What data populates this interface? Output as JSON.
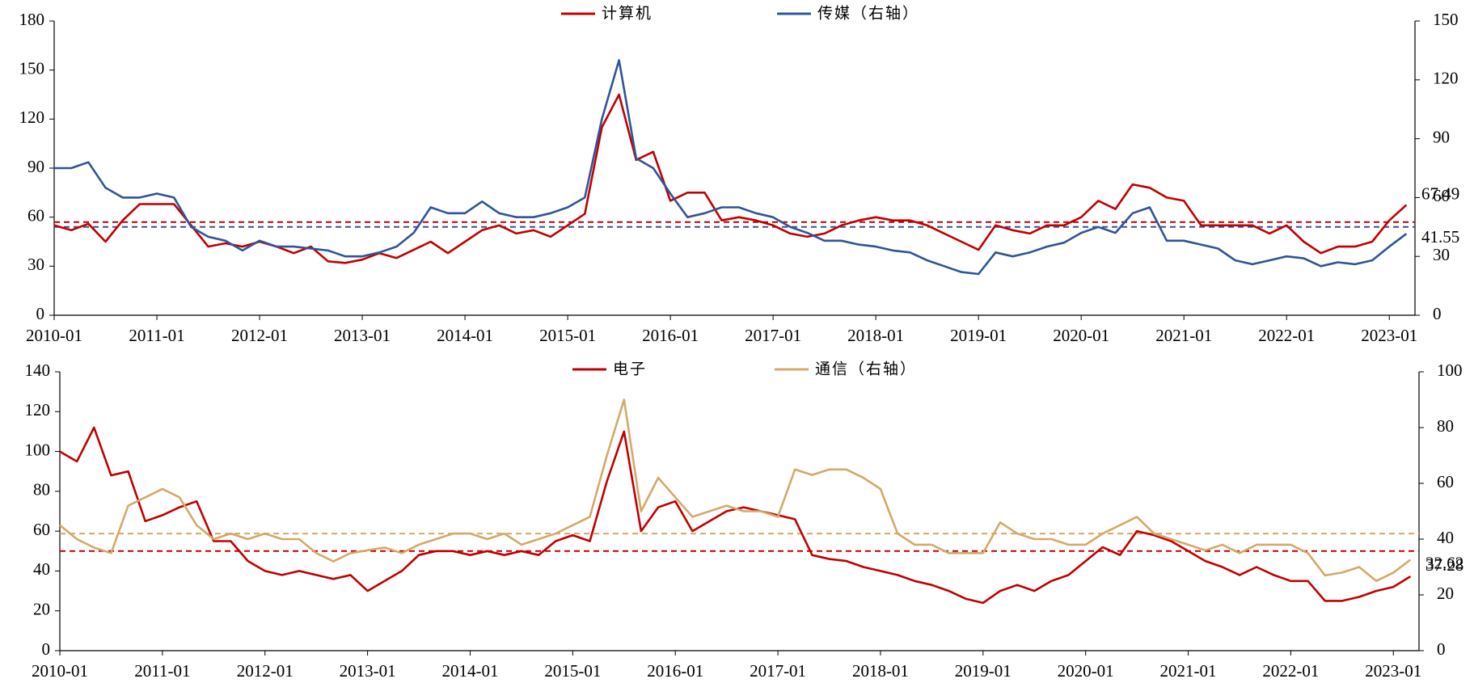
{
  "chart_data": [
    {
      "type": "line",
      "legend": "top",
      "x": [
        "2010-01",
        "2010-03",
        "2010-05",
        "2010-07",
        "2010-09",
        "2010-11",
        "2011-01",
        "2011-03",
        "2011-05",
        "2011-07",
        "2011-09",
        "2011-11",
        "2012-01",
        "2012-03",
        "2012-05",
        "2012-07",
        "2012-09",
        "2012-11",
        "2013-01",
        "2013-03",
        "2013-05",
        "2013-07",
        "2013-09",
        "2013-11",
        "2014-01",
        "2014-03",
        "2014-05",
        "2014-07",
        "2014-09",
        "2014-11",
        "2015-01",
        "2015-03",
        "2015-05",
        "2015-07",
        "2015-09",
        "2015-11",
        "2016-01",
        "2016-03",
        "2016-05",
        "2016-07",
        "2016-09",
        "2016-11",
        "2017-01",
        "2017-03",
        "2017-05",
        "2017-07",
        "2017-09",
        "2017-11",
        "2018-01",
        "2018-03",
        "2018-05",
        "2018-07",
        "2018-09",
        "2018-11",
        "2019-01",
        "2019-03",
        "2019-05",
        "2019-07",
        "2019-09",
        "2019-11",
        "2020-01",
        "2020-03",
        "2020-05",
        "2020-07",
        "2020-09",
        "2020-11",
        "2021-01",
        "2021-03",
        "2021-05",
        "2021-07",
        "2021-09",
        "2021-11",
        "2022-01",
        "2022-03",
        "2022-05",
        "2022-07",
        "2022-09",
        "2022-11",
        "2023-01",
        "2023-03"
      ],
      "xlim": [
        "2010-01",
        "2023-04"
      ],
      "xticks": [
        "2010-01",
        "2011-01",
        "2012-01",
        "2013-01",
        "2014-01",
        "2015-01",
        "2016-01",
        "2017-01",
        "2018-01",
        "2019-01",
        "2020-01",
        "2021-01",
        "2022-01",
        "2023-01"
      ],
      "ylim": [
        0,
        180
      ],
      "yticks": [
        0,
        30,
        60,
        90,
        120,
        150,
        180
      ],
      "y2lim": [
        0,
        150
      ],
      "y2ticks": [
        0,
        30,
        60,
        90,
        120,
        150
      ],
      "series": [
        {
          "name": "计算机",
          "color": "#c00000",
          "values": [
            55,
            52,
            56,
            45,
            58,
            68,
            68,
            68,
            55,
            42,
            44,
            42,
            45,
            42,
            38,
            42,
            33,
            32,
            34,
            38,
            35,
            40,
            45,
            38,
            45,
            52,
            55,
            50,
            52,
            48,
            55,
            62,
            115,
            135,
            95,
            100,
            70,
            75,
            75,
            58,
            60,
            58,
            55,
            50,
            48,
            50,
            55,
            58,
            60,
            58,
            58,
            55,
            50,
            45,
            40,
            55,
            52,
            50,
            55,
            55,
            60,
            70,
            65,
            80,
            78,
            72,
            70,
            55,
            55,
            55,
            55,
            50,
            55,
            45,
            38,
            42,
            42,
            45,
            58,
            67.49
          ]
        },
        {
          "name": "传媒（右轴）",
          "color": "#2f5597",
          "axis": "y2",
          "values": [
            75,
            75,
            78,
            65,
            60,
            60,
            62,
            60,
            45,
            40,
            38,
            33,
            38,
            35,
            35,
            34,
            33,
            30,
            30,
            32,
            35,
            42,
            55,
            52,
            52,
            58,
            52,
            50,
            50,
            52,
            55,
            60,
            100,
            130,
            80,
            75,
            62,
            50,
            52,
            55,
            55,
            52,
            50,
            45,
            42,
            38,
            38,
            36,
            35,
            33,
            32,
            28,
            25,
            22,
            21,
            32,
            30,
            32,
            35,
            37,
            42,
            45,
            42,
            52,
            55,
            38,
            38,
            36,
            34,
            28,
            26,
            28,
            30,
            29,
            25,
            27,
            26,
            28,
            35,
            41.55
          ]
        }
      ],
      "reference_lines": [
        {
          "value": 57,
          "color": "#c00000"
        },
        {
          "value": 45,
          "axis": "y2",
          "color": "#2f5597"
        }
      ]
    },
    {
      "type": "line",
      "legend": "top",
      "x": [
        "2010-01",
        "2010-03",
        "2010-05",
        "2010-07",
        "2010-09",
        "2010-11",
        "2011-01",
        "2011-03",
        "2011-05",
        "2011-07",
        "2011-09",
        "2011-11",
        "2012-01",
        "2012-03",
        "2012-05",
        "2012-07",
        "2012-09",
        "2012-11",
        "2013-01",
        "2013-03",
        "2013-05",
        "2013-07",
        "2013-09",
        "2013-11",
        "2014-01",
        "2014-03",
        "2014-05",
        "2014-07",
        "2014-09",
        "2014-11",
        "2015-01",
        "2015-03",
        "2015-05",
        "2015-07",
        "2015-09",
        "2015-11",
        "2016-01",
        "2016-03",
        "2016-05",
        "2016-07",
        "2016-09",
        "2016-11",
        "2017-01",
        "2017-03",
        "2017-05",
        "2017-07",
        "2017-09",
        "2017-11",
        "2018-01",
        "2018-03",
        "2018-05",
        "2018-07",
        "2018-09",
        "2018-11",
        "2019-01",
        "2019-03",
        "2019-05",
        "2019-07",
        "2019-09",
        "2019-11",
        "2020-01",
        "2020-03",
        "2020-05",
        "2020-07",
        "2020-09",
        "2020-11",
        "2021-01",
        "2021-03",
        "2021-05",
        "2021-07",
        "2021-09",
        "2021-11",
        "2022-01",
        "2022-03",
        "2022-05",
        "2022-07",
        "2022-09",
        "2022-11",
        "2023-01",
        "2023-03"
      ],
      "xlim": [
        "2010-01",
        "2023-04"
      ],
      "xticks": [
        "2010-01",
        "2011-01",
        "2012-01",
        "2013-01",
        "2014-01",
        "2015-01",
        "2016-01",
        "2017-01",
        "2018-01",
        "2019-01",
        "2020-01",
        "2021-01",
        "2022-01",
        "2023-01"
      ],
      "ylim": [
        0,
        140
      ],
      "yticks": [
        0,
        20,
        40,
        60,
        80,
        100,
        120,
        140
      ],
      "y2lim": [
        0,
        100
      ],
      "y2ticks": [
        0,
        20,
        40,
        60,
        80,
        100
      ],
      "series": [
        {
          "name": "电子",
          "color": "#c00000",
          "values": [
            100,
            95,
            112,
            88,
            90,
            65,
            68,
            72,
            75,
            55,
            55,
            45,
            40,
            38,
            40,
            38,
            36,
            38,
            30,
            35,
            40,
            48,
            50,
            50,
            48,
            50,
            48,
            50,
            48,
            55,
            58,
            55,
            85,
            110,
            60,
            72,
            75,
            60,
            65,
            70,
            72,
            70,
            68,
            66,
            48,
            46,
            45,
            42,
            40,
            38,
            35,
            33,
            30,
            26,
            24,
            30,
            33,
            30,
            35,
            38,
            45,
            52,
            48,
            60,
            58,
            55,
            50,
            45,
            42,
            38,
            42,
            38,
            35,
            35,
            25,
            25,
            27,
            30,
            32,
            37.28
          ]
        },
        {
          "name": "通信（右轴）",
          "color": "#d4a96a",
          "axis": "y2",
          "values": [
            45,
            40,
            37,
            35,
            52,
            55,
            58,
            55,
            45,
            40,
            42,
            40,
            42,
            40,
            40,
            35,
            32,
            35,
            36,
            37,
            35,
            38,
            40,
            42,
            42,
            40,
            42,
            38,
            40,
            42,
            45,
            48,
            70,
            90,
            50,
            62,
            55,
            48,
            50,
            52,
            50,
            50,
            48,
            65,
            63,
            65,
            65,
            62,
            58,
            42,
            38,
            38,
            35,
            35,
            35,
            46,
            42,
            40,
            40,
            38,
            38,
            42,
            45,
            48,
            42,
            40,
            38,
            36,
            38,
            35,
            38,
            38,
            38,
            35,
            27,
            28,
            30,
            25,
            28,
            32.62
          ]
        }
      ],
      "reference_lines": [
        {
          "value": 50,
          "color": "#c00000"
        },
        {
          "value": 42,
          "axis": "y2",
          "color": "#d4a96a"
        }
      ]
    }
  ]
}
